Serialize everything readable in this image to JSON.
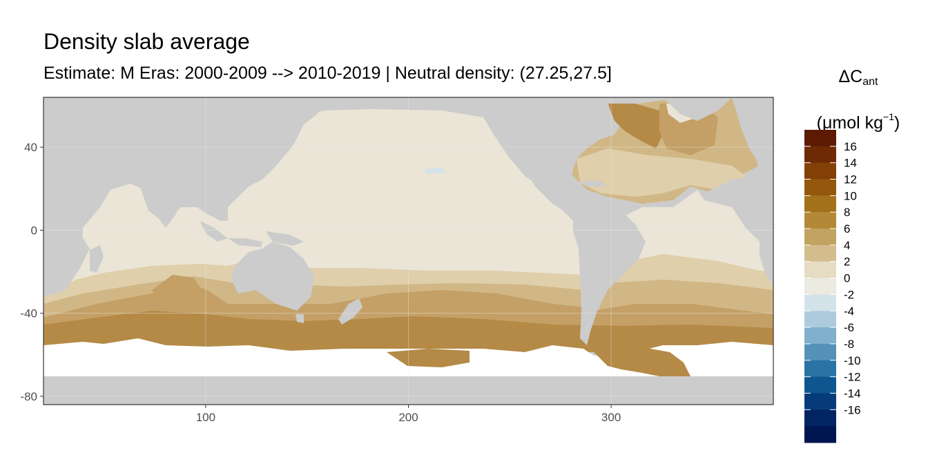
{
  "title": "Density slab average",
  "subtitle": "Estimate: M Eras: 2000-2009 --> 2010-2019 | Neutral density: (27.25,27.5]",
  "legend": {
    "title_delta": "ΔC",
    "title_sub": "ant",
    "title_unit_prefix": "(μmol kg",
    "title_unit_sup": "−1",
    "title_unit_suffix": ")",
    "labels": [
      "16",
      "14",
      "12",
      "10",
      "8",
      "6",
      "4",
      "2",
      "0",
      "-2",
      "-4",
      "-6",
      "-8",
      "-10",
      "-12",
      "-14",
      "-16"
    ],
    "colors": [
      "#5c1a03",
      "#6e2a04",
      "#824006",
      "#94580c",
      "#a5721c",
      "#b38938",
      "#c2a362",
      "#d4bd8d",
      "#e6dbc3",
      "#ecebe1",
      "#d4e3ea",
      "#aecbde",
      "#80b0cd",
      "#5592b8",
      "#2a73a4",
      "#0e5690",
      "#053b79",
      "#022462",
      "#001650"
    ]
  },
  "map": {
    "x_ticks": [
      "100",
      "200",
      "300"
    ],
    "y_ticks": [
      "40",
      "0",
      "-40",
      "-80"
    ],
    "x_tick_values": [
      100,
      200,
      300
    ],
    "y_tick_values": [
      40,
      0,
      -40,
      -80
    ],
    "x_range": [
      20,
      380
    ],
    "y_range": [
      -84,
      64
    ],
    "colors": {
      "land": "#cccccc",
      "ice": "#ffffff",
      "c0": "#ebe5d7",
      "c2": "#dfcfab",
      "c4": "#d1b786",
      "c6": "#c4a066",
      "c8": "#b48a46",
      "c10": "#a7743a",
      "neg": "#d6e2ea"
    }
  }
}
